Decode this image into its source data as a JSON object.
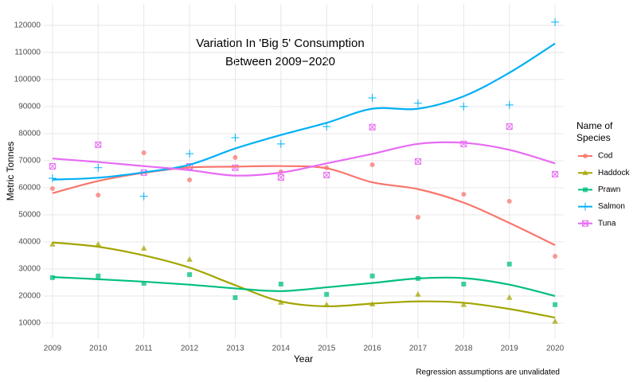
{
  "chart_data": {
    "type": "scatter-smooth",
    "title_lines": [
      "Variation In 'Big 5' Consumption",
      "Between 2009−2020"
    ],
    "x_label": "Year",
    "y_label": "Metric Tonnes",
    "legend_title_lines": [
      "Name of",
      "Species"
    ],
    "caption": "Regression assumptions are unvalidated",
    "grid": true,
    "legend": "right",
    "x": [
      2009,
      2010,
      2011,
      2012,
      2013,
      2014,
      2015,
      2016,
      2017,
      2018,
      2019,
      2020
    ],
    "xlim": [
      2008.81,
      2020.19
    ],
    "xticks": [
      2009,
      2010,
      2011,
      2012,
      2013,
      2014,
      2015,
      2016,
      2017,
      2018,
      2019,
      2020
    ],
    "ylim": [
      4400,
      127900
    ],
    "yticks": [
      10000,
      20000,
      30000,
      40000,
      50000,
      60000,
      70000,
      80000,
      90000,
      100000,
      110000,
      120000
    ],
    "series": [
      {
        "name": "Cod",
        "color": "#F8766D",
        "shape": "circle",
        "values": [
          59700,
          57300,
          72900,
          62900,
          71200,
          65900,
          67400,
          68500,
          49100,
          57600,
          55000,
          34700
        ],
        "smooth": [
          58000,
          62500,
          65500,
          67500,
          67800,
          68000,
          67200,
          62000,
          59500,
          54500,
          47000,
          38800
        ]
      },
      {
        "name": "Haddock",
        "color": "#A3A500",
        "shape": "triangle",
        "values": [
          39100,
          39100,
          37600,
          33500,
          null,
          17600,
          16800,
          17000,
          20600,
          16800,
          19400,
          10600
        ],
        "smooth": [
          39800,
          38200,
          35000,
          30500,
          24000,
          18000,
          16200,
          17200,
          18000,
          17500,
          15200,
          12000
        ]
      },
      {
        "name": "Prawn",
        "color": "#00BF7D",
        "shape": "square",
        "values": [
          26800,
          27400,
          24700,
          27900,
          19400,
          24400,
          20600,
          27400,
          26500,
          24400,
          31800,
          16800
        ],
        "smooth": [
          27000,
          26200,
          25300,
          24200,
          22800,
          21800,
          23200,
          24800,
          26500,
          26600,
          24200,
          20000
        ]
      },
      {
        "name": "Salmon",
        "color": "#00B0F6",
        "shape": "plus",
        "values": [
          63500,
          67400,
          56800,
          72600,
          78500,
          76200,
          82600,
          93200,
          91200,
          90000,
          90600,
          121200
        ],
        "smooth": [
          63000,
          63700,
          65700,
          68500,
          74500,
          79500,
          84000,
          89200,
          89200,
          93800,
          102500,
          113300
        ]
      },
      {
        "name": "Tuna",
        "color": "#E76BF3",
        "shape": "boxcross",
        "values": [
          67900,
          75900,
          65600,
          67900,
          67400,
          63800,
          64700,
          82400,
          69700,
          76200,
          82600,
          65000
        ],
        "smooth": [
          70800,
          69500,
          68000,
          66500,
          64500,
          65600,
          69000,
          72500,
          76200,
          76600,
          74000,
          69000
        ]
      }
    ]
  }
}
